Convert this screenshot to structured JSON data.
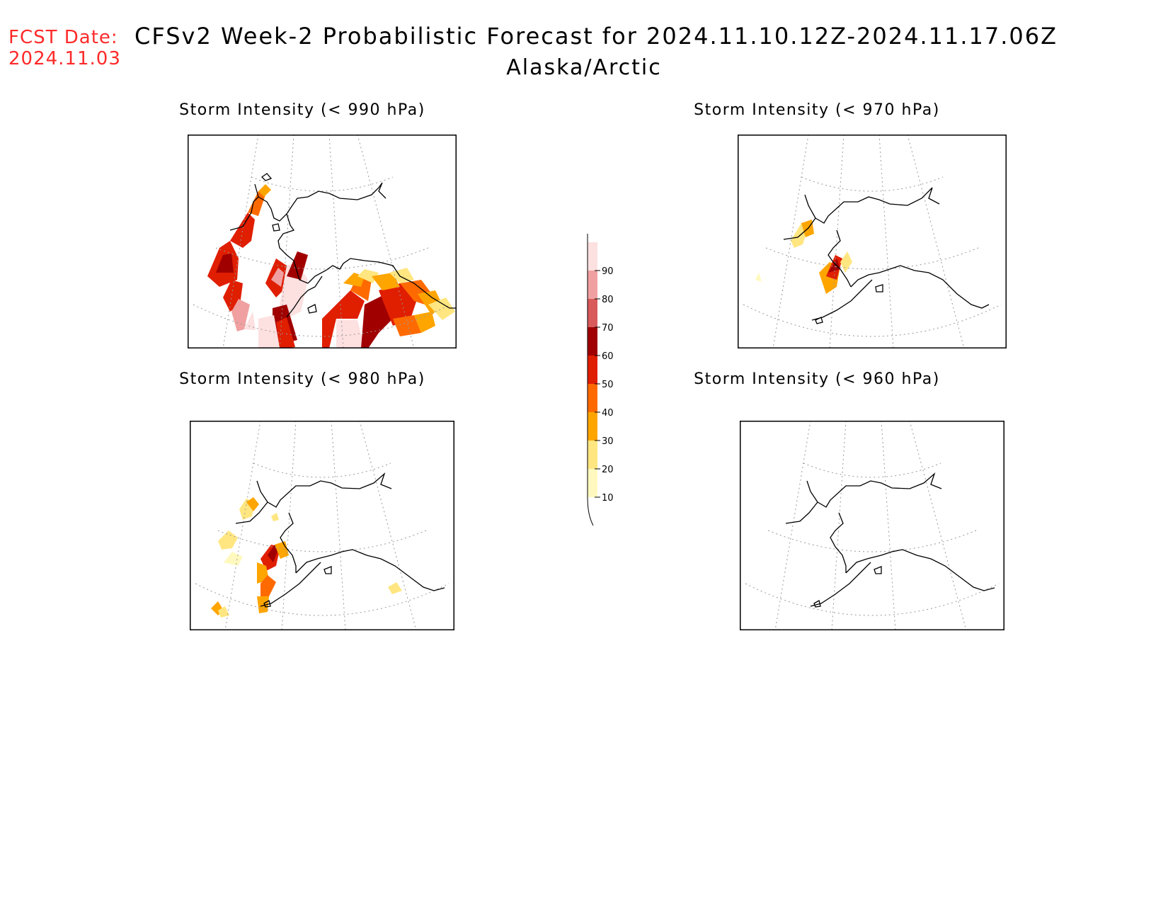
{
  "header": {
    "fcst_label": "FCST Date:",
    "fcst_date": "2024.11.03",
    "title": "CFSv2 Week-2 Probabilistic Forecast for 2024.11.10.12Z-2024.11.17.06Z",
    "subtitle": "Alaska/Arctic"
  },
  "panels": [
    {
      "title": "Storm Intensity (< 990 hPa)"
    },
    {
      "title": "Storm Intensity (< 970 hPa)"
    },
    {
      "title": "Storm Intensity (< 980 hPa)"
    },
    {
      "title": "Storm Intensity (< 960 hPa)"
    }
  ],
  "colorbar": {
    "levels": [
      "10",
      "20",
      "30",
      "40",
      "50",
      "60",
      "70",
      "80",
      "90"
    ],
    "colors": [
      "#fff9bf",
      "#ffe680",
      "#ffa500",
      "#ff6a00",
      "#e01e00",
      "#a00000",
      "#d85a5a",
      "#f0a0a0",
      "#fde0e0"
    ]
  },
  "colors": {
    "fcst_text": "#ff2a2a",
    "coast": "#000000",
    "grid": "#999999"
  }
}
